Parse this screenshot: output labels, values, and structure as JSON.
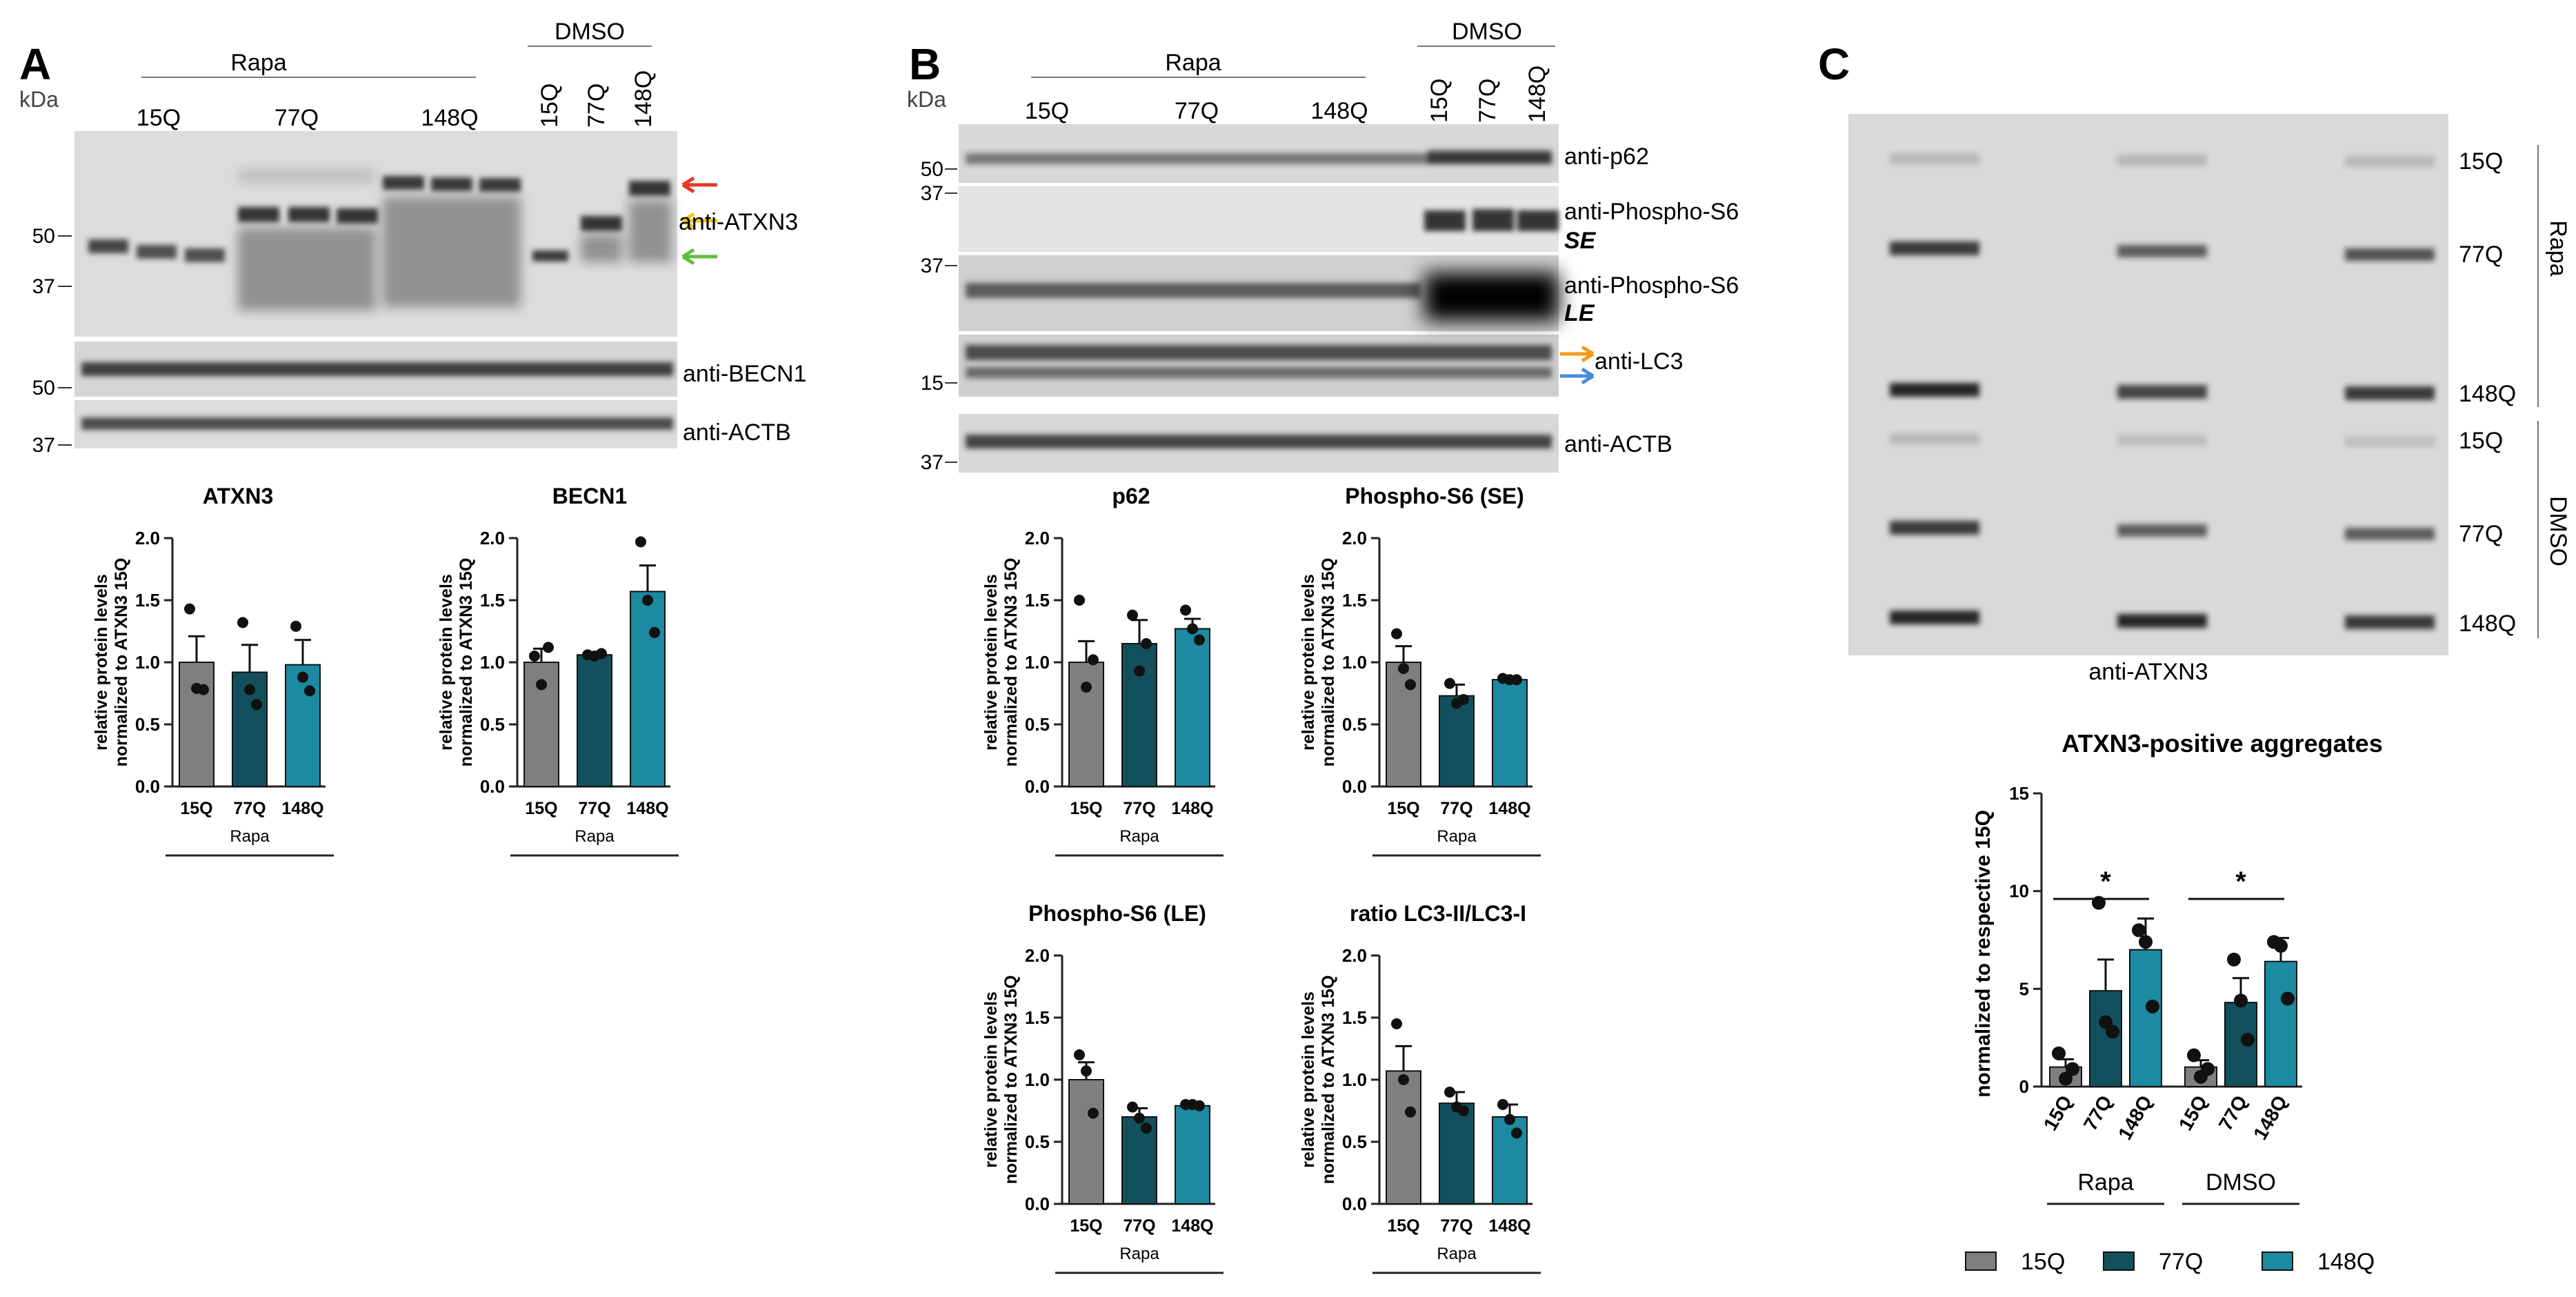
{
  "panels": {
    "a": "A",
    "b": "B",
    "c": "C"
  },
  "units": {
    "kda": "kDa"
  },
  "treatments": {
    "rapa": "Rapa",
    "dmso": "DMSO"
  },
  "lanes": {
    "q15": "15Q",
    "q77": "77Q",
    "q148": "148Q"
  },
  "blot_a": {
    "markers": [
      "50",
      "37",
      "50",
      "37"
    ],
    "labels": {
      "atxn3": "anti-ATXN3",
      "becn1": "anti-BECN1",
      "actb": "anti-ACTB"
    }
  },
  "blot_b": {
    "markers": [
      "50",
      "37",
      "37",
      "15",
      "37"
    ],
    "labels": {
      "p62": "anti-p62",
      "ps6_se": "anti-Phospho-S6",
      "se": "SE",
      "ps6_le": "anti-Phospho-S6",
      "le": "LE",
      "lc3": "anti-LC3",
      "actb": "anti-ACTB"
    }
  },
  "filter_c": {
    "label": "anti-ATXN3",
    "side_labels": [
      "15Q",
      "77Q",
      "148Q",
      "15Q",
      "77Q",
      "148Q"
    ],
    "group_labels": {
      "top": "Rapa",
      "bottom": "DMSO"
    }
  },
  "colors": {
    "q15": "#7f7f7f",
    "q77": "#13505e",
    "q148": "#1c8aa3",
    "arrow_red": "#e23a2a",
    "arrow_yellow": "#f4c318",
    "arrow_green": "#5fbf3b",
    "arrow_orange": "#f39a1d",
    "arrow_blue": "#4a8ad8"
  },
  "chart_data": [
    {
      "id": "atxn3",
      "type": "bar",
      "title": "ATXN3",
      "ylabel": "relative protein levels normalized to ATXN3 15Q",
      "xlabel": "Rapa",
      "categories": [
        "15Q",
        "77Q",
        "148Q"
      ],
      "values": [
        1.0,
        0.92,
        0.98
      ],
      "errors": [
        0.21,
        0.22,
        0.2
      ],
      "points": [
        [
          1.43,
          0.79,
          0.78
        ],
        [
          1.32,
          0.78,
          0.66
        ],
        [
          1.29,
          0.88,
          0.77
        ]
      ],
      "ylim": [
        0,
        2.0
      ],
      "yticks": [
        "0.0",
        "0.5",
        "1.0",
        "1.5",
        "2.0"
      ]
    },
    {
      "id": "becn1",
      "type": "bar",
      "title": "BECN1",
      "ylabel": "relative protein levels normalized to ATXN3 15Q",
      "xlabel": "Rapa",
      "categories": [
        "15Q",
        "77Q",
        "148Q"
      ],
      "values": [
        1.0,
        1.06,
        1.57
      ],
      "errors": [
        0.11,
        0.02,
        0.21
      ],
      "points": [
        [
          1.05,
          0.82,
          1.12
        ],
        [
          1.06,
          1.05,
          1.07
        ],
        [
          1.97,
          1.5,
          1.24
        ]
      ],
      "ylim": [
        0,
        2.0
      ],
      "yticks": [
        "0.0",
        "0.5",
        "1.0",
        "1.5",
        "2.0"
      ]
    },
    {
      "id": "p62",
      "type": "bar",
      "title": "p62",
      "ylabel": "relative protein levels normalized to ATXN3 15Q",
      "xlabel": "Rapa",
      "categories": [
        "15Q",
        "77Q",
        "148Q"
      ],
      "values": [
        1.0,
        1.15,
        1.27
      ],
      "errors": [
        0.17,
        0.19,
        0.08
      ],
      "points": [
        [
          1.5,
          0.8,
          1.02
        ],
        [
          1.38,
          0.93,
          1.15
        ],
        [
          1.42,
          1.27,
          1.18
        ]
      ],
      "ylim": [
        0,
        2.0
      ],
      "yticks": [
        "0.0",
        "0.5",
        "1.0",
        "1.5",
        "2.0"
      ]
    },
    {
      "id": "ps6se",
      "type": "bar",
      "title": "Phospho-S6 (SE)",
      "ylabel": "relative protein levels normalized to ATXN3 15Q",
      "xlabel": "Rapa",
      "categories": [
        "15Q",
        "77Q",
        "148Q"
      ],
      "values": [
        1.0,
        0.73,
        0.86
      ],
      "errors": [
        0.13,
        0.09,
        0.01
      ],
      "points": [
        [
          1.23,
          0.95,
          0.82
        ],
        [
          0.83,
          0.67,
          0.7
        ],
        [
          0.87,
          0.86,
          0.86
        ]
      ],
      "ylim": [
        0,
        2.0
      ],
      "yticks": [
        "0.0",
        "0.5",
        "1.0",
        "1.5",
        "2.0"
      ]
    },
    {
      "id": "ps6le",
      "type": "bar",
      "title": "Phospho-S6 (LE)",
      "ylabel": "relative protein levels normalized to ATXN3 15Q",
      "xlabel": "Rapa",
      "categories": [
        "15Q",
        "77Q",
        "148Q"
      ],
      "values": [
        1.0,
        0.7,
        0.79
      ],
      "errors": [
        0.14,
        0.07,
        0.02
      ],
      "points": [
        [
          1.2,
          1.07,
          0.73
        ],
        [
          0.78,
          0.69,
          0.61
        ],
        [
          0.8,
          0.8,
          0.79
        ]
      ],
      "ylim": [
        0,
        2.0
      ],
      "yticks": [
        "0.0",
        "0.5",
        "1.0",
        "1.5",
        "2.0"
      ]
    },
    {
      "id": "lc3",
      "type": "bar",
      "title": "ratio LC3-II/LC3-I",
      "ylabel": "relative protein levels normalized to ATXN3 15Q",
      "xlabel": "Rapa",
      "categories": [
        "15Q",
        "77Q",
        "148Q"
      ],
      "values": [
        1.07,
        0.81,
        0.7
      ],
      "errors": [
        0.2,
        0.09,
        0.1
      ],
      "points": [
        [
          1.45,
          1.0,
          0.74
        ],
        [
          0.9,
          0.78,
          0.75
        ],
        [
          0.8,
          0.68,
          0.57
        ]
      ],
      "ylim": [
        0,
        2.0
      ],
      "yticks": [
        "0.0",
        "0.5",
        "1.0",
        "1.5",
        "2.0"
      ]
    },
    {
      "id": "agg",
      "type": "bar",
      "title": "ATXN3-positive aggregates",
      "ylabel": "normalized to respective 15Q",
      "groups": [
        "Rapa",
        "DMSO"
      ],
      "categories": [
        "15Q",
        "77Q",
        "148Q",
        "15Q",
        "77Q",
        "148Q"
      ],
      "values": [
        1.0,
        4.9,
        7.0,
        1.0,
        4.3,
        6.4
      ],
      "errors": [
        0.4,
        1.6,
        1.6,
        0.35,
        1.25,
        1.2
      ],
      "points": [
        [
          1.7,
          0.4,
          0.9
        ],
        [
          9.4,
          3.3,
          2.8
        ],
        [
          8.0,
          7.4,
          4.1
        ],
        [
          1.6,
          0.5,
          0.9
        ],
        [
          6.5,
          4.4,
          2.4
        ],
        [
          7.4,
          7.2,
          4.5
        ]
      ],
      "significance": [
        {
          "bars": [
            0,
            2
          ],
          "label": "*"
        },
        {
          "bars": [
            3,
            5
          ],
          "label": "*"
        }
      ],
      "ylim": [
        0,
        15
      ],
      "yticks": [
        "0",
        "5",
        "10",
        "15"
      ],
      "legend": [
        "15Q",
        "77Q",
        "148Q"
      ],
      "legend_position": "bottom"
    }
  ]
}
